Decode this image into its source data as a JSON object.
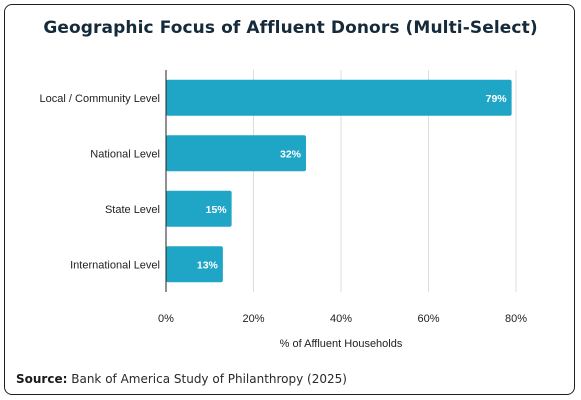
{
  "chart_data": {
    "type": "bar",
    "orientation": "horizontal",
    "title": "Geographic Focus of Affluent Donors (Multi-Select)",
    "categories": [
      "Local / Community Level",
      "National Level",
      "State Level",
      "International Level"
    ],
    "values": [
      79,
      32,
      15,
      13
    ],
    "data_labels": [
      "79%",
      "32%",
      "15%",
      "13%"
    ],
    "xlabel": "% of Affluent Households",
    "ylabel": "",
    "xlim": [
      0,
      80
    ],
    "xticks": [
      0,
      20,
      40,
      60,
      80
    ],
    "xtick_labels": [
      "0%",
      "20%",
      "40%",
      "60%",
      "80%"
    ],
    "grid": "vertical",
    "bar_color": "#1fa6c6",
    "gridline_color": "#dddddd"
  },
  "source": {
    "label": "Source:",
    "text": "Bank of America Study of Philanthropy (2025)"
  }
}
